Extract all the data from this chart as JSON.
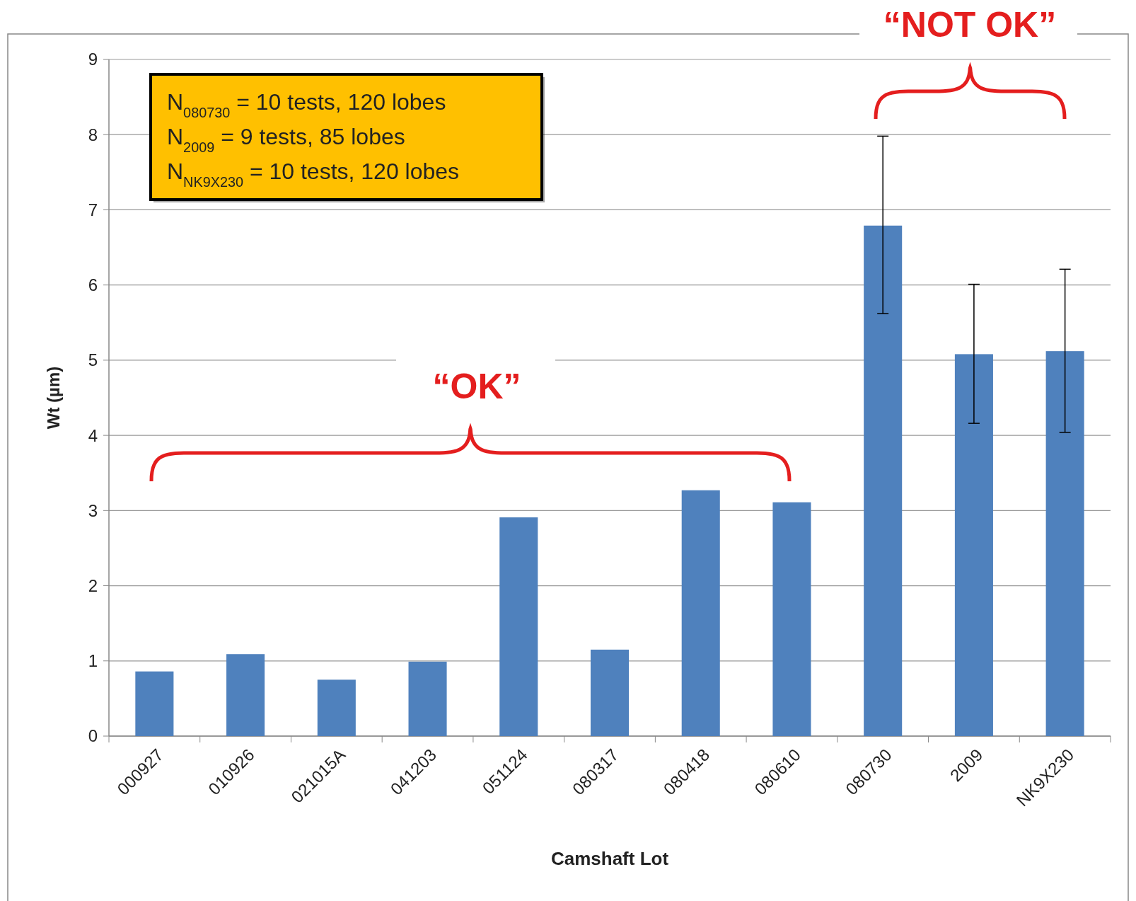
{
  "chart_data": {
    "type": "bar",
    "xlabel": "Camshaft Lot",
    "ylabel": "Wt (µm)",
    "categories": [
      "000927",
      "010926",
      "021015A",
      "041203",
      "051124",
      "080317",
      "080418",
      "080610",
      "080730",
      "2009",
      "NK9X230"
    ],
    "values": [
      0.86,
      1.09,
      0.75,
      0.99,
      2.91,
      1.15,
      3.27,
      3.11,
      6.79,
      5.08,
      5.12
    ],
    "errors": [
      null,
      null,
      null,
      null,
      null,
      null,
      null,
      null,
      [
        5.62,
        7.98
      ],
      [
        4.16,
        6.01
      ],
      [
        4.04,
        6.21
      ]
    ],
    "color": "#4f81bd",
    "ylim": [
      0,
      9
    ],
    "yticks": [
      0,
      1,
      2,
      3,
      4,
      5,
      6,
      7,
      8,
      9
    ],
    "grid": "y",
    "annotations": [
      "N$_{080730}$ = 10 tests, 120 lobes\nN$_{2009}$ = 9 tests, 85 lobes\nN$_{NK9X230}$ = 10 tests, 120 lobes",
      "“OK”",
      "“NOT OK”"
    ]
  }
}
